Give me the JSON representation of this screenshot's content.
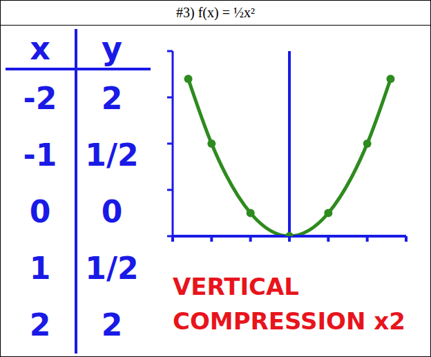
{
  "title": "#3) f(x) = ½x²",
  "table": {
    "header": [
      "x",
      "y"
    ],
    "rows": [
      [
        "-2",
        "2"
      ],
      [
        "-1",
        "1/2"
      ],
      [
        "0",
        "0"
      ],
      [
        "1",
        "1/2"
      ],
      [
        "2",
        "2"
      ]
    ]
  },
  "chart_data": {
    "type": "line",
    "x": [
      -2.6,
      -2,
      -1,
      0,
      1,
      2,
      2.6
    ],
    "values": [
      3.4,
      2,
      0.5,
      0,
      0.5,
      2,
      3.4
    ],
    "color": "#2e8b1e",
    "xlim": [
      -3,
      3
    ],
    "xticks": [
      -3,
      -2,
      -1,
      0,
      1,
      2,
      3
    ],
    "ylim": [
      0,
      4
    ],
    "yticks": [
      0,
      1,
      2,
      3,
      4
    ],
    "tick_labels": false,
    "marker": "circle"
  },
  "annotation": "VERTICAL COMPRESSION x2"
}
